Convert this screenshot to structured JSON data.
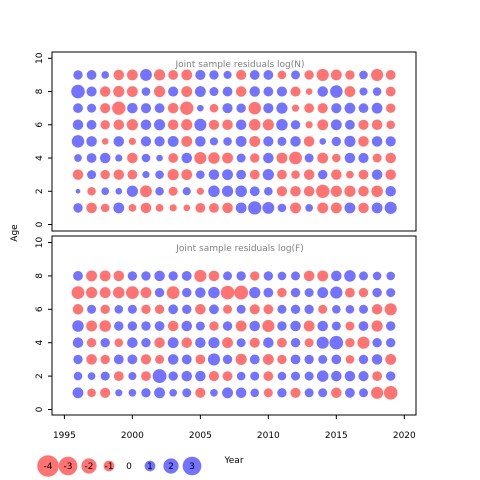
{
  "chart_data": {
    "type": "scatter",
    "variant": "bubble",
    "xlabel": "Year",
    "ylabel": "Age",
    "xlim": [
      1995,
      2020
    ],
    "ylim": [
      0,
      10
    ],
    "x_ticks": [
      1995,
      2000,
      2005,
      2010,
      2015,
      2020
    ],
    "y_ticks": [
      0,
      2,
      4,
      6,
      8,
      10
    ],
    "colors": {
      "positive": "#0000ff",
      "negative": "#ff0000",
      "opacity": 0.55
    },
    "panels": [
      {
        "title": "Joint sample residuals log(N)",
        "years": [
          1996,
          1997,
          1998,
          1999,
          2000,
          2001,
          2002,
          2003,
          2004,
          2005,
          2006,
          2007,
          2008,
          2009,
          2010,
          2011,
          2012,
          2013,
          2014,
          2015,
          2016,
          2017,
          2018,
          2019
        ],
        "ages": [
          1,
          2,
          3,
          4,
          5,
          6,
          7,
          8,
          9
        ],
        "residuals_by_age": [
          [
            1.2,
            -1.5,
            -1.0,
            1.6,
            -0.8,
            -1.5,
            -0.8,
            -0.7,
            -0.6,
            -1.3,
            -1.3,
            -1.5,
            1.6,
            2.4,
            1.9,
            1.0,
            -1.6,
            0.8,
            -1.6,
            -1.6,
            1.6,
            -1.5,
            1.6,
            2.0
          ],
          [
            0.3,
            -1.0,
            0.8,
            0.6,
            1.7,
            -1.9,
            1.0,
            -1.1,
            0.9,
            -0.7,
            1.8,
            1.7,
            1.8,
            1.3,
            1.0,
            -1.4,
            -1.5,
            -1.5,
            -2.4,
            -1.7,
            -1.7,
            -1.5,
            -1.8,
            1.5
          ],
          [
            -1.5,
            1.1,
            -1.2,
            -1.5,
            -1.3,
            0.7,
            1.0,
            -1.7,
            -1.6,
            1.0,
            1.5,
            1.6,
            1.3,
            -1.3,
            1.7,
            -1.3,
            -1.0,
            -1.5,
            1.2,
            -1.5,
            -0.8,
            -1.3,
            1.5,
            -1.5
          ],
          [
            0.8,
            1.3,
            1.5,
            0.7,
            -1.5,
            1.0,
            0.6,
            -1.3,
            1.5,
            -2.0,
            -1.8,
            -1.6,
            1.1,
            -1.2,
            1.5,
            -1.6,
            -2.2,
            1.1,
            -1.6,
            -1.0,
            1.5,
            1.4,
            -1.1,
            -1.5
          ],
          [
            2.1,
            1.5,
            -0.6,
            1.5,
            -0.7,
            1.4,
            1.4,
            1.6,
            -1.6,
            1.5,
            0.9,
            1.0,
            1.6,
            -1.6,
            1.4,
            1.1,
            1.5,
            -1.5,
            0.6,
            1.2,
            1.7,
            -1.5,
            1.5,
            1.4
          ],
          [
            1.5,
            1.3,
            -1.2,
            -1.5,
            -1.7,
            1.5,
            1.7,
            -1.5,
            -1.7,
            2.0,
            -1.4,
            -1.5,
            1.5,
            -1.8,
            -1.7,
            1.8,
            1.2,
            -0.7,
            -1.6,
            1.6,
            1.3,
            -1.4,
            -1.5,
            -1.0
          ],
          [
            1.3,
            1.1,
            -1.4,
            -2.4,
            1.5,
            1.4,
            1.3,
            -1.5,
            -2.4,
            0.6,
            -1.0,
            1.4,
            1.2,
            -2.1,
            1.4,
            1.7,
            -0.7,
            -1.3,
            -1.4,
            1.4,
            1.6,
            1.3,
            1.6,
            -1.2
          ],
          [
            2.5,
            1.4,
            -1.5,
            -1.7,
            -1.6,
            1.0,
            -1.7,
            1.4,
            -1.6,
            1.6,
            1.1,
            1.3,
            -1.5,
            1.5,
            1.3,
            1.4,
            -1.4,
            -0.6,
            1.5,
            2.1,
            -1.6,
            0.9,
            1.0,
            -1.3
          ],
          [
            1.2,
            1.3,
            0.8,
            -1.5,
            -1.6,
            1.9,
            -1.7,
            -1.3,
            -1.6,
            1.4,
            1.2,
            0.9,
            -1.4,
            1.3,
            1.3,
            -1.0,
            1.1,
            -1.2,
            -2.0,
            -1.6,
            -1.2,
            1.0,
            -2.0,
            -1.3
          ]
        ]
      },
      {
        "title": "Joint sample residuals log(F)",
        "years": [
          1996,
          1997,
          1998,
          1999,
          2000,
          2001,
          2002,
          2003,
          2004,
          2005,
          2006,
          2007,
          2008,
          2009,
          2010,
          2011,
          2012,
          2013,
          2014,
          2015,
          2016,
          2017,
          2018,
          2019
        ],
        "ages": [
          1,
          2,
          3,
          4,
          5,
          6,
          7,
          8
        ],
        "residuals_by_age": [
          [
            1.6,
            -1.0,
            -1.4,
            0.7,
            0.8,
            1.2,
            1.6,
            0.8,
            1.1,
            -1.4,
            0.8,
            1.6,
            1.5,
            1.0,
            -1.1,
            1.2,
            -1.4,
            1.1,
            1.1,
            -1.5,
            1.3,
            1.1,
            -2.0,
            -2.5
          ],
          [
            1.0,
            0.8,
            1.1,
            -1.3,
            0.9,
            -1.3,
            2.6,
            1.2,
            1.5,
            1.5,
            -1.4,
            -1.3,
            1.0,
            1.1,
            -1.3,
            1.0,
            1.1,
            1.1,
            1.8,
            1.5,
            1.5,
            1.4,
            -1.3,
            1.2
          ],
          [
            1.2,
            -1.5,
            -1.2,
            1.3,
            1.3,
            -1.4,
            -1.1,
            1.5,
            1.3,
            -1.3,
            2.0,
            1.2,
            -1.7,
            1.3,
            -1.6,
            -1.2,
            1.3,
            1.2,
            1.1,
            1.3,
            -1.0,
            1.2,
            1.5,
            -1.6
          ],
          [
            1.5,
            -1.2,
            1.2,
            -1.0,
            1.5,
            1.2,
            -1.5,
            1.6,
            -1.5,
            1.5,
            1.7,
            -1.6,
            1.1,
            -1.4,
            1.5,
            -1.3,
            1.2,
            -1.1,
            2.0,
            2.5,
            -1.2,
            -2.0,
            1.2,
            1.2
          ],
          [
            1.8,
            -1.6,
            -1.8,
            1.2,
            1.2,
            1.2,
            1.3,
            -1.5,
            1.5,
            1.1,
            -1.2,
            1.2,
            -1.6,
            1.5,
            -2.0,
            1.2,
            1.5,
            -1.6,
            1.5,
            1.1,
            -1.1,
            1.3,
            -1.7,
            1.2
          ],
          [
            -1.5,
            1.1,
            -1.2,
            1.0,
            1.1,
            -1.2,
            -1.2,
            1.3,
            1.2,
            -1.5,
            1.3,
            -1.1,
            1.1,
            -1.4,
            -1.3,
            1.1,
            1.2,
            1.2,
            -1.1,
            1.0,
            1.0,
            1.1,
            -1.5,
            -2.0
          ],
          [
            -2.2,
            -1.7,
            -1.6,
            -1.8,
            -2.2,
            -1.6,
            1.2,
            -2.2,
            1.2,
            1.5,
            1.8,
            -2.5,
            -2.6,
            1.7,
            1.3,
            -1.2,
            1.2,
            1.1,
            1.6,
            2.0,
            -1.3,
            -1.2,
            1.2,
            1.1
          ],
          [
            1.3,
            -1.6,
            -1.6,
            -1.5,
            1.2,
            1.2,
            1.5,
            1.2,
            1.3,
            -2.0,
            -1.5,
            1.1,
            1.2,
            -1.2,
            1.2,
            1.0,
            1.1,
            -1.5,
            -1.6,
            1.5,
            1.8,
            1.1,
            1.0,
            1.0
          ]
        ]
      }
    ],
    "legend": {
      "placement": "bottom-left",
      "values": [
        -4,
        -3,
        -2,
        -1,
        0,
        1,
        2,
        3
      ],
      "labels": [
        "-4",
        "-3",
        "-2",
        "-1",
        "0",
        "1",
        "2",
        "3"
      ]
    }
  }
}
